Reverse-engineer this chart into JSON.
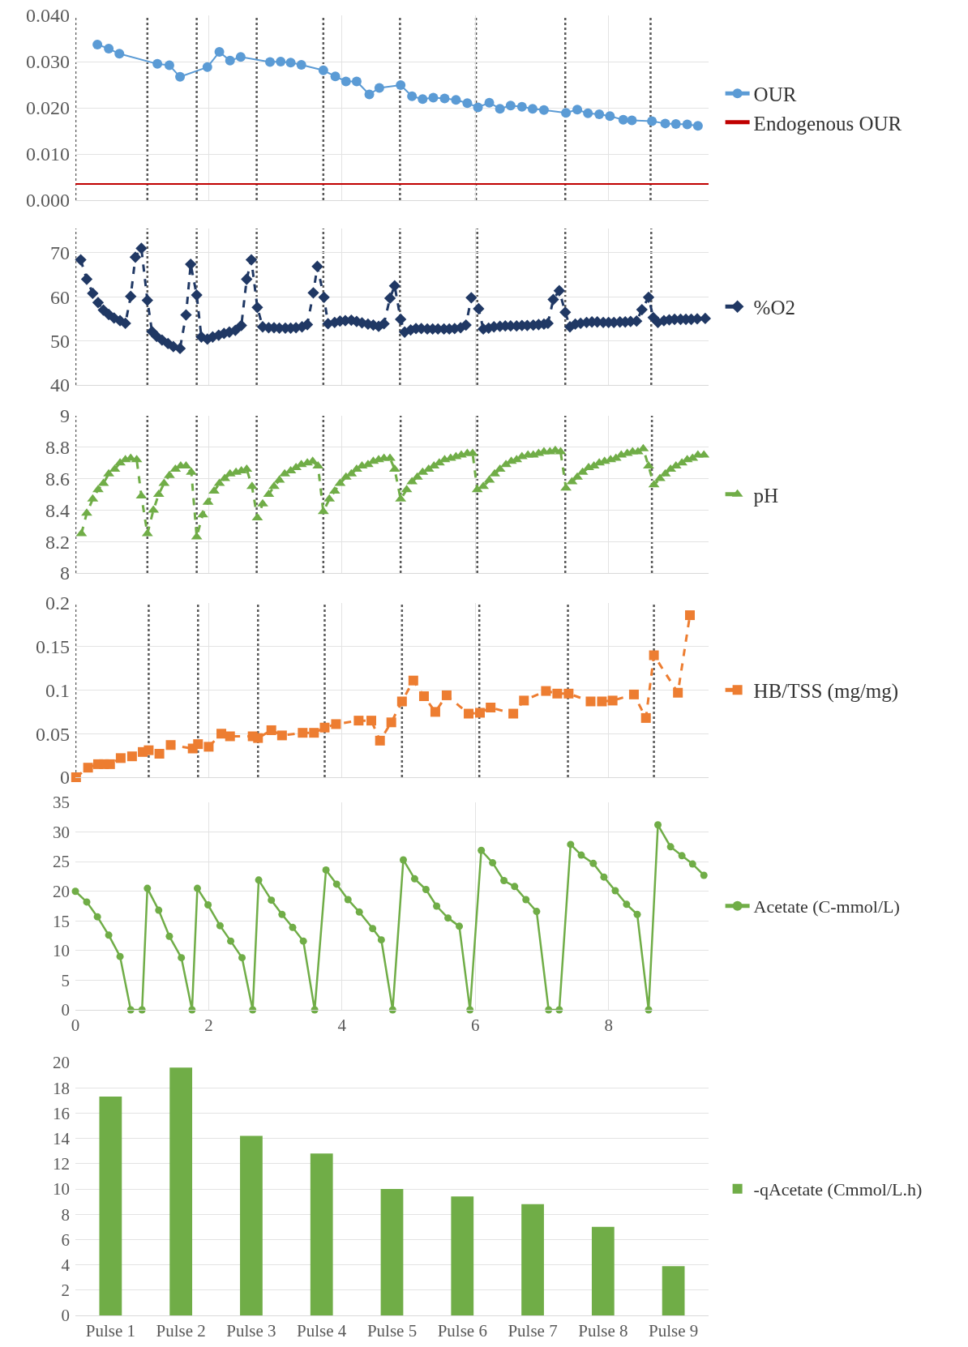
{
  "chart_data": [
    {
      "type": "line",
      "series": [
        {
          "name": "OUR",
          "color": "#5b9bd5",
          "x": [
            0.33,
            0.5,
            0.66,
            1.23,
            1.41,
            1.57,
            1.98,
            2.16,
            2.32,
            2.48,
            2.92,
            3.08,
            3.23,
            3.39,
            3.72,
            3.9,
            4.06,
            4.22,
            4.41,
            4.56,
            4.88,
            5.05,
            5.21,
            5.37,
            5.54,
            5.71,
            5.88,
            6.04,
            6.21,
            6.37,
            6.53,
            6.7,
            6.86,
            7.03,
            7.36,
            7.53,
            7.69,
            7.86,
            8.02,
            8.22,
            8.35,
            8.65,
            8.85,
            9.01,
            9.18,
            9.34
          ],
          "values": [
            0.0337,
            0.0328,
            0.0317,
            0.0295,
            0.0292,
            0.0267,
            0.0288,
            0.0321,
            0.0302,
            0.031,
            0.0299,
            0.03,
            0.0298,
            0.0293,
            0.0281,
            0.0268,
            0.0257,
            0.0257,
            0.0229,
            0.0243,
            0.0249,
            0.0225,
            0.0219,
            0.0222,
            0.022,
            0.0217,
            0.021,
            0.0201,
            0.0211,
            0.0198,
            0.0205,
            0.0202,
            0.0198,
            0.0195,
            0.0189,
            0.0196,
            0.0188,
            0.0186,
            0.0182,
            0.0174,
            0.0173,
            0.0171,
            0.0166,
            0.0165,
            0.0164,
            0.0161
          ]
        },
        {
          "name": "Endogenous OUR",
          "color": "#c00000",
          "marker": "none",
          "x": [
            0,
            9.5
          ],
          "values": [
            0.0035,
            0.0035
          ]
        }
      ],
      "xlim": [
        0,
        9.5
      ],
      "xticks": [
        0,
        2,
        4,
        6,
        8
      ],
      "ylim": [
        0,
        0.04
      ],
      "yticks": [
        {
          "value": 0,
          "label": "0.000"
        },
        {
          "value": 0.01,
          "label": "0.010"
        },
        {
          "value": 0.02,
          "label": "0.020"
        },
        {
          "value": 0.03,
          "label": "0.030"
        },
        {
          "value": 0.04,
          "label": "0.040"
        }
      ],
      "tick_labels": "y",
      "grid": true,
      "legend": "right",
      "marker": "circle",
      "line_style": "solid",
      "ref_lines": [
        {
          "axis": "x",
          "value": 0,
          "color": "#595959",
          "line_style": "dotted"
        },
        {
          "axis": "x",
          "value": 1.08,
          "color": "#595959",
          "line_style": "dotted"
        },
        {
          "axis": "x",
          "value": 1.82,
          "color": "#595959",
          "line_style": "dotted"
        },
        {
          "axis": "x",
          "value": 2.72,
          "color": "#595959",
          "line_style": "dotted"
        },
        {
          "axis": "x",
          "value": 3.72,
          "color": "#595959",
          "line_style": "dotted"
        },
        {
          "axis": "x",
          "value": 4.87,
          "color": "#595959",
          "line_style": "dotted"
        },
        {
          "axis": "x",
          "value": 6.01,
          "color": "#595959",
          "line_style": "dotted"
        },
        {
          "axis": "x",
          "value": 7.35,
          "color": "#595959",
          "line_style": "dotted"
        },
        {
          "axis": "x",
          "value": 8.63,
          "color": "#595959",
          "line_style": "dotted"
        }
      ]
    },
    {
      "type": "line",
      "series": [
        {
          "name": "%O2",
          "color": "#203864",
          "x": [
            0.08,
            0.17,
            0.26,
            0.34,
            0.42,
            0.5,
            0.58,
            0.67,
            0.75,
            0.83,
            0.9,
            0.99,
            1.08,
            1.15,
            1.22,
            1.3,
            1.39,
            1.47,
            1.57,
            1.66,
            1.73,
            1.82,
            1.89,
            1.98,
            2.06,
            2.15,
            2.23,
            2.31,
            2.4,
            2.49,
            2.57,
            2.64,
            2.73,
            2.81,
            2.9,
            2.98,
            3.06,
            3.15,
            3.23,
            3.31,
            3.4,
            3.48,
            3.57,
            3.63,
            3.73,
            3.79,
            3.89,
            3.97,
            4.05,
            4.14,
            4.22,
            4.3,
            4.39,
            4.47,
            4.55,
            4.63,
            4.72,
            4.79,
            4.88,
            4.94,
            5.03,
            5.11,
            5.19,
            5.28,
            5.36,
            5.44,
            5.53,
            5.61,
            5.69,
            5.78,
            5.86,
            5.94,
            6.05,
            6.12,
            6.2,
            6.28,
            6.37,
            6.45,
            6.53,
            6.62,
            6.7,
            6.78,
            6.87,
            6.95,
            7.03,
            7.09,
            7.17,
            7.26,
            7.35,
            7.42,
            7.5,
            7.58,
            7.67,
            7.75,
            7.83,
            7.92,
            8,
            8.08,
            8.17,
            8.25,
            8.33,
            8.42,
            8.5,
            8.6,
            8.67,
            8.74,
            8.83,
            8.91,
            8.99,
            9.08,
            9.16,
            9.24,
            9.33,
            9.45
          ],
          "values": [
            68.4,
            64,
            60.8,
            58.7,
            57,
            56,
            55.2,
            54.6,
            54,
            60.1,
            69,
            71,
            59.2,
            52.1,
            51,
            50.2,
            49.4,
            48.7,
            48.3,
            55.9,
            67.4,
            60.4,
            50.9,
            50.4,
            50.9,
            51.3,
            51.7,
            52,
            52.4,
            53.5,
            64,
            68.4,
            57.6,
            53.2,
            53,
            53,
            52.9,
            52.9,
            52.9,
            53,
            53.2,
            53.7,
            60.9,
            66.9,
            59.9,
            53.9,
            54.2,
            54.5,
            54.6,
            54.7,
            54.4,
            54.1,
            53.8,
            53.6,
            53.3,
            53.9,
            59.7,
            62.5,
            54.9,
            52,
            52.5,
            52.8,
            52.8,
            52.7,
            52.7,
            52.7,
            52.7,
            52.7,
            52.8,
            53,
            53.6,
            59.8,
            57.3,
            52.7,
            52.9,
            53.2,
            53.3,
            53.4,
            53.4,
            53.4,
            53.5,
            53.5,
            53.6,
            53.7,
            53.8,
            54,
            59.4,
            61.4,
            56.5,
            53.2,
            53.8,
            54,
            54.2,
            54.3,
            54.3,
            54.2,
            54.2,
            54.2,
            54.3,
            54.3,
            54.4,
            54.5,
            57.1,
            59.9,
            55.3,
            54.2,
            54.6,
            54.8,
            54.9,
            54.9,
            54.9,
            54.9,
            55,
            55.1
          ]
        }
      ],
      "xlim": [
        0,
        9.5
      ],
      "xticks": [
        0,
        2,
        4,
        6,
        8
      ],
      "ylim": [
        40,
        75.5
      ],
      "yticks": [
        40,
        50,
        60,
        70
      ],
      "tick_labels": "y",
      "grid": true,
      "legend": "right",
      "marker": "diamond",
      "line_style": "dashed",
      "ref_lines": [
        {
          "axis": "x",
          "value": 0,
          "color": "#595959",
          "line_style": "dotted"
        },
        {
          "axis": "x",
          "value": 1.08,
          "color": "#595959",
          "line_style": "dotted"
        },
        {
          "axis": "x",
          "value": 1.82,
          "color": "#595959",
          "line_style": "dotted"
        },
        {
          "axis": "x",
          "value": 2.72,
          "color": "#595959",
          "line_style": "dotted"
        },
        {
          "axis": "x",
          "value": 3.72,
          "color": "#595959",
          "line_style": "dotted"
        },
        {
          "axis": "x",
          "value": 4.87,
          "color": "#595959",
          "line_style": "dotted"
        },
        {
          "axis": "x",
          "value": 6.03,
          "color": "#595959",
          "line_style": "dotted"
        },
        {
          "axis": "x",
          "value": 7.35,
          "color": "#595959",
          "line_style": "dotted"
        },
        {
          "axis": "x",
          "value": 8.64,
          "color": "#595959",
          "line_style": "dotted"
        }
      ]
    },
    {
      "type": "line",
      "series": [
        {
          "name": "pH",
          "color": "#70ad47",
          "x": [
            0.09,
            0.17,
            0.26,
            0.34,
            0.42,
            0.5,
            0.59,
            0.67,
            0.75,
            0.83,
            0.92,
            0.99,
            1.08,
            1.17,
            1.25,
            1.33,
            1.41,
            1.5,
            1.58,
            1.66,
            1.74,
            1.82,
            1.91,
            1.99,
            2.08,
            2.16,
            2.24,
            2.32,
            2.41,
            2.49,
            2.57,
            2.65,
            2.73,
            2.81,
            2.9,
            2.98,
            3.06,
            3.14,
            3.23,
            3.31,
            3.39,
            3.48,
            3.56,
            3.64,
            3.72,
            3.81,
            3.89,
            3.97,
            4.06,
            4.14,
            4.22,
            4.3,
            4.39,
            4.47,
            4.55,
            4.63,
            4.72,
            4.79,
            4.88,
            4.97,
            5.05,
            5.13,
            5.21,
            5.3,
            5.38,
            5.46,
            5.54,
            5.63,
            5.71,
            5.79,
            5.88,
            5.96,
            6.03,
            6.12,
            6.21,
            6.29,
            6.37,
            6.46,
            6.54,
            6.62,
            6.7,
            6.79,
            6.87,
            6.95,
            7.03,
            7.12,
            7.2,
            7.28,
            7.36,
            7.45,
            7.53,
            7.61,
            7.7,
            7.78,
            7.86,
            7.94,
            8.03,
            8.11,
            8.19,
            8.28,
            8.36,
            8.44,
            8.52,
            8.6,
            8.68,
            8.77,
            8.85,
            8.93,
            9.01,
            9.1,
            9.18,
            9.26,
            9.34,
            9.43
          ],
          "values": [
            8.25,
            8.38,
            8.47,
            8.53,
            8.57,
            8.63,
            8.66,
            8.7,
            8.72,
            8.73,
            8.72,
            8.49,
            8.25,
            8.4,
            8.5,
            8.57,
            8.62,
            8.66,
            8.68,
            8.68,
            8.64,
            8.23,
            8.37,
            8.45,
            8.52,
            8.57,
            8.6,
            8.63,
            8.64,
            8.65,
            8.66,
            8.55,
            8.35,
            8.44,
            8.5,
            8.55,
            8.59,
            8.63,
            8.65,
            8.67,
            8.69,
            8.7,
            8.71,
            8.68,
            8.39,
            8.47,
            8.52,
            8.57,
            8.61,
            8.63,
            8.66,
            8.68,
            8.69,
            8.71,
            8.72,
            8.73,
            8.73,
            8.66,
            8.47,
            8.53,
            8.58,
            8.61,
            8.64,
            8.66,
            8.68,
            8.7,
            8.72,
            8.73,
            8.74,
            8.75,
            8.76,
            8.76,
            8.53,
            8.55,
            8.59,
            8.63,
            8.66,
            8.69,
            8.71,
            8.72,
            8.74,
            8.75,
            8.75,
            8.76,
            8.77,
            8.77,
            8.78,
            8.77,
            8.54,
            8.58,
            8.61,
            8.64,
            8.67,
            8.68,
            8.7,
            8.71,
            8.72,
            8.73,
            8.75,
            8.76,
            8.77,
            8.77,
            8.79,
            8.68,
            8.56,
            8.6,
            8.63,
            8.66,
            8.68,
            8.7,
            8.72,
            8.73,
            8.75,
            8.75
          ]
        }
      ],
      "xlim": [
        0,
        9.5
      ],
      "xticks": [
        0,
        2,
        4,
        6,
        8
      ],
      "ylim": [
        8,
        9
      ],
      "yticks": [
        8,
        8.2,
        8.4,
        8.6,
        8.8,
        9
      ],
      "tick_labels": "y",
      "grid": true,
      "legend": "right",
      "marker": "triangle",
      "line_style": "dashed",
      "ref_lines": [
        {
          "axis": "x",
          "value": 0,
          "color": "#595959",
          "line_style": "dotted"
        },
        {
          "axis": "x",
          "value": 1.08,
          "color": "#595959",
          "line_style": "dotted"
        },
        {
          "axis": "x",
          "value": 1.82,
          "color": "#595959",
          "line_style": "dotted"
        },
        {
          "axis": "x",
          "value": 2.72,
          "color": "#595959",
          "line_style": "dotted"
        },
        {
          "axis": "x",
          "value": 3.72,
          "color": "#595959",
          "line_style": "dotted"
        },
        {
          "axis": "x",
          "value": 4.88,
          "color": "#595959",
          "line_style": "dotted"
        },
        {
          "axis": "x",
          "value": 6.03,
          "color": "#595959",
          "line_style": "dotted"
        },
        {
          "axis": "x",
          "value": 7.35,
          "color": "#595959",
          "line_style": "dotted"
        },
        {
          "axis": "x",
          "value": 8.65,
          "color": "#595959",
          "line_style": "dotted"
        }
      ]
    },
    {
      "type": "line",
      "series": [
        {
          "name": "HB/TSS (mg/mg)",
          "color": "#ed7d31",
          "x": [
            0.01,
            0.19,
            0.34,
            0.43,
            0.52,
            0.68,
            0.85,
            1.01,
            1.1,
            1.26,
            1.43,
            1.76,
            1.84,
            2,
            2.19,
            2.32,
            2.66,
            2.74,
            2.94,
            3.1,
            3.41,
            3.58,
            3.74,
            3.91,
            4.25,
            4.44,
            4.57,
            4.74,
            4.9,
            5.07,
            5.23,
            5.4,
            5.57,
            5.9,
            6.07,
            6.23,
            6.57,
            6.73,
            7.06,
            7.23,
            7.4,
            7.73,
            7.9,
            8.06,
            8.38,
            8.56,
            8.68,
            9.04,
            9.22
          ],
          "values": [
            0,
            0.011,
            0.015,
            0.015,
            0.015,
            0.022,
            0.024,
            0.029,
            0.031,
            0.027,
            0.037,
            0.033,
            0.038,
            0.035,
            0.05,
            0.047,
            0.047,
            0.045,
            0.054,
            0.048,
            0.051,
            0.051,
            0.057,
            0.061,
            0.065,
            0.065,
            0.042,
            0.063,
            0.087,
            0.111,
            0.093,
            0.075,
            0.094,
            0.073,
            0.074,
            0.08,
            0.073,
            0.088,
            0.099,
            0.096,
            0.096,
            0.087,
            0.087,
            0.088,
            0.095,
            0.068,
            0.14,
            0.097,
            0.186
          ]
        }
      ],
      "xlim": [
        0,
        9.5
      ],
      "xticks": [
        0,
        2,
        4,
        6,
        8
      ],
      "ylim": [
        0,
        0.2
      ],
      "yticks": [
        0,
        0.05,
        0.1,
        0.15,
        0.2
      ],
      "tick_labels": "y",
      "grid": true,
      "legend": "right",
      "marker": "square",
      "line_style": "dashed",
      "ref_lines": [
        {
          "axis": "x",
          "value": 0,
          "color": "#595959",
          "line_style": "dotted"
        },
        {
          "axis": "x",
          "value": 1.1,
          "color": "#595959",
          "line_style": "dotted"
        },
        {
          "axis": "x",
          "value": 1.84,
          "color": "#595959",
          "line_style": "dotted"
        },
        {
          "axis": "x",
          "value": 2.74,
          "color": "#595959",
          "line_style": "dotted"
        },
        {
          "axis": "x",
          "value": 3.74,
          "color": "#595959",
          "line_style": "dotted"
        },
        {
          "axis": "x",
          "value": 4.9,
          "color": "#595959",
          "line_style": "dotted"
        },
        {
          "axis": "x",
          "value": 6.06,
          "color": "#595959",
          "line_style": "dotted"
        },
        {
          "axis": "x",
          "value": 7.39,
          "color": "#595959",
          "line_style": "dotted"
        },
        {
          "axis": "x",
          "value": 8.68,
          "color": "#595959",
          "line_style": "dotted"
        }
      ]
    },
    {
      "type": "line",
      "series": [
        {
          "name": "Acetate (C-mmol/L)",
          "color": "#70ad47",
          "x": [
            0,
            0.17,
            0.33,
            0.5,
            0.67,
            0.83,
            1,
            1.08,
            1.25,
            1.41,
            1.59,
            1.75,
            1.83,
            1.99,
            2.17,
            2.33,
            2.5,
            2.66,
            2.75,
            2.94,
            3.1,
            3.26,
            3.42,
            3.59,
            3.76,
            3.92,
            4.09,
            4.26,
            4.46,
            4.59,
            4.76,
            4.92,
            5.09,
            5.26,
            5.42,
            5.59,
            5.76,
            5.92,
            6.09,
            6.26,
            6.43,
            6.59,
            6.76,
            6.92,
            7.1,
            7.26,
            7.43,
            7.59,
            7.77,
            7.93,
            8.1,
            8.27,
            8.43,
            8.6,
            8.74,
            8.93,
            9.1,
            9.26,
            9.43
          ],
          "values": [
            20,
            18.2,
            15.7,
            12.6,
            9,
            0,
            0,
            20.5,
            16.8,
            12.4,
            8.8,
            0,
            20.5,
            17.7,
            14.2,
            11.6,
            8.8,
            0,
            21.9,
            18.5,
            16.1,
            13.9,
            11.6,
            0,
            23.6,
            21.2,
            18.6,
            16.5,
            13.7,
            11.8,
            0,
            25.3,
            22.1,
            20.3,
            17.5,
            15.5,
            14.1,
            0,
            26.9,
            24.8,
            21.8,
            20.8,
            18.6,
            16.6,
            0,
            0,
            27.9,
            26.1,
            24.7,
            22.4,
            20.1,
            17.8,
            16.1,
            0,
            31.2,
            27.5,
            26,
            24.6,
            22.7
          ]
        }
      ],
      "xlim": [
        0,
        9.5
      ],
      "xticks": [
        0,
        2,
        4,
        6,
        8
      ],
      "ylim": [
        0,
        35
      ],
      "yticks": [
        0,
        5,
        10,
        15,
        20,
        25,
        30,
        35
      ],
      "grid": true,
      "legend": "right",
      "marker": "circle",
      "line_style": "solid"
    },
    {
      "type": "bar",
      "categories": [
        "Pulse 1",
        "Pulse 2",
        "Pulse 3",
        "Pulse 4",
        "Pulse 5",
        "Pulse 6",
        "Pulse 7",
        "Pulse 8",
        "Pulse 9"
      ],
      "series": [
        {
          "name": "-qAcetate (Cmmol/L.h)",
          "color": "#70ad47",
          "values": [
            17.3,
            19.6,
            14.2,
            12.8,
            10,
            9.4,
            8.8,
            7,
            3.9
          ]
        }
      ],
      "ylim": [
        0,
        20
      ],
      "yticks": [
        0,
        2,
        4,
        6,
        8,
        10,
        12,
        14,
        16,
        18,
        20
      ],
      "grid": "y",
      "legend": "right"
    }
  ]
}
